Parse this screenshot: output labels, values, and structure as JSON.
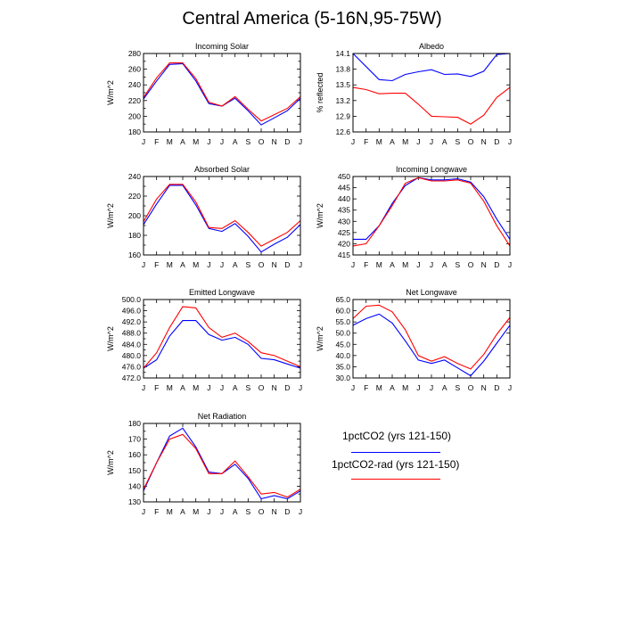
{
  "title": "Central America (5-16N,95-75W)",
  "colors": {
    "series1": "#0000ff",
    "series2": "#ff0000"
  },
  "legend": [
    {
      "label": "1pctCO2 (yrs 121-150)",
      "color": "#0000ff"
    },
    {
      "label": "1pctCO2-rad (yrs 121-150)",
      "color": "#ff0000"
    }
  ],
  "chart_data": [
    {
      "type": "line",
      "title": "Incoming Solar",
      "ylabel": "W/m^2",
      "categories": [
        "J",
        "F",
        "M",
        "A",
        "M",
        "J",
        "J",
        "A",
        "S",
        "O",
        "N",
        "D",
        "J"
      ],
      "ylim": [
        180,
        280
      ],
      "yticks": [
        180,
        190,
        200,
        210,
        220,
        230,
        240,
        250,
        260,
        270,
        280
      ],
      "ytick_labels": [
        "180",
        "",
        "200",
        "",
        "220",
        "",
        "240",
        "",
        "260",
        "",
        "280"
      ],
      "series": [
        {
          "values": [
            222,
            245,
            266,
            267,
            245,
            216,
            213,
            223,
            207,
            189,
            198,
            207,
            223
          ]
        },
        {
          "values": [
            224,
            249,
            268,
            268,
            248,
            218,
            213,
            225,
            209,
            194,
            202,
            210,
            225
          ]
        }
      ]
    },
    {
      "type": "line",
      "title": "Albedo",
      "ylabel": "% reflected",
      "categories": [
        "J",
        "F",
        "M",
        "A",
        "M",
        "J",
        "J",
        "A",
        "S",
        "O",
        "N",
        "D",
        "J"
      ],
      "ylim": [
        12.6,
        14.1
      ],
      "yticks": [
        12.6,
        12.9,
        13.2,
        13.5,
        13.8,
        14.1
      ],
      "ytick_labels": [
        "12.6",
        "12.9",
        "13.2",
        "13.5",
        "13.8",
        "14.1"
      ],
      "series": [
        {
          "values": [
            14.1,
            13.85,
            13.6,
            13.58,
            13.7,
            13.75,
            13.79,
            13.7,
            13.71,
            13.66,
            13.76,
            14.08,
            14.1
          ]
        },
        {
          "values": [
            13.45,
            13.41,
            13.33,
            13.34,
            13.34,
            13.13,
            12.9,
            12.89,
            12.88,
            12.75,
            12.92,
            13.26,
            13.45
          ]
        }
      ]
    },
    {
      "type": "line",
      "title": "Absorbed Solar",
      "ylabel": "W/m^2",
      "categories": [
        "J",
        "F",
        "M",
        "A",
        "M",
        "J",
        "J",
        "A",
        "S",
        "O",
        "N",
        "D",
        "J"
      ],
      "ylim": [
        160,
        240
      ],
      "yticks": [
        160,
        170,
        180,
        190,
        200,
        210,
        220,
        230,
        240
      ],
      "ytick_labels": [
        "160",
        "",
        "180",
        "",
        "200",
        "",
        "220",
        "",
        "240"
      ],
      "series": [
        {
          "values": [
            191,
            212,
            231,
            231,
            211,
            187,
            184,
            192,
            179,
            163,
            171,
            178,
            191
          ]
        },
        {
          "values": [
            194,
            217,
            232,
            232,
            214,
            188,
            187,
            195,
            183,
            169,
            176,
            183,
            195
          ]
        }
      ]
    },
    {
      "type": "line",
      "title": "Incoming Longwave",
      "ylabel": "W/m^2",
      "categories": [
        "J",
        "F",
        "M",
        "A",
        "M",
        "J",
        "J",
        "A",
        "S",
        "O",
        "N",
        "D",
        "J"
      ],
      "ylim": [
        415,
        450
      ],
      "yticks": [
        415,
        420,
        425,
        430,
        435,
        440,
        445,
        450
      ],
      "ytick_labels": [
        "415",
        "420",
        "425",
        "430",
        "435",
        "440",
        "445",
        "450"
      ],
      "series": [
        {
          "values": [
            422,
            422,
            428,
            438,
            446,
            449.5,
            448.5,
            448.5,
            449,
            447.5,
            441,
            431,
            422
          ]
        },
        {
          "values": [
            419,
            420,
            428,
            437,
            447,
            449.5,
            448,
            448,
            448.5,
            447,
            439,
            428,
            419
          ]
        }
      ]
    },
    {
      "type": "line",
      "title": "Emitted Longwave",
      "ylabel": "W/m^2",
      "categories": [
        "J",
        "F",
        "M",
        "A",
        "M",
        "J",
        "J",
        "A",
        "S",
        "O",
        "N",
        "D",
        "J"
      ],
      "ylim": [
        472,
        500
      ],
      "yticks": [
        472,
        474,
        476,
        478,
        480,
        482,
        484,
        486,
        488,
        490,
        492,
        494,
        496,
        498,
        500
      ],
      "ytick_labels": [
        "472.0",
        "",
        "476.0",
        "",
        "480.0",
        "",
        "484.0",
        "",
        "488.0",
        "",
        "492.0",
        "",
        "496.0",
        "",
        "500.0"
      ],
      "series": [
        {
          "values": [
            475.5,
            478.5,
            487,
            492.5,
            492.5,
            487.5,
            485.5,
            486.5,
            484,
            479,
            478.5,
            477,
            475.5
          ]
        },
        {
          "values": [
            475.5,
            481,
            490,
            497.5,
            497,
            490,
            486.5,
            488,
            485,
            481,
            480,
            478,
            476
          ]
        }
      ]
    },
    {
      "type": "line",
      "title": "Net Longwave",
      "ylabel": "W/m^2",
      "categories": [
        "J",
        "F",
        "M",
        "A",
        "M",
        "J",
        "J",
        "A",
        "S",
        "O",
        "N",
        "D",
        "J"
      ],
      "ylim": [
        30,
        65
      ],
      "yticks": [
        30,
        35,
        40,
        45,
        50,
        55,
        60,
        65
      ],
      "ytick_labels": [
        "30.0",
        "35.0",
        "40.0",
        "45.0",
        "50.0",
        "55.0",
        "60.0",
        "65.0"
      ],
      "series": [
        {
          "values": [
            53.5,
            56.5,
            58.5,
            54.5,
            46.5,
            38,
            36.5,
            38,
            34.5,
            31,
            37.5,
            45.5,
            53.5
          ]
        },
        {
          "values": [
            56.5,
            62,
            62.5,
            59.5,
            51.5,
            40,
            37.5,
            39.5,
            36.5,
            34,
            40.5,
            49.5,
            57
          ]
        }
      ]
    },
    {
      "type": "line",
      "title": "Net Radiation",
      "ylabel": "W/m^2",
      "categories": [
        "J",
        "F",
        "M",
        "A",
        "M",
        "J",
        "J",
        "A",
        "S",
        "O",
        "N",
        "D",
        "J"
      ],
      "ylim": [
        130,
        180
      ],
      "yticks": [
        130,
        135,
        140,
        145,
        150,
        155,
        160,
        165,
        170,
        175,
        180
      ],
      "ytick_labels": [
        "130",
        "",
        "140",
        "",
        "150",
        "",
        "160",
        "",
        "170",
        "",
        "180"
      ],
      "series": [
        {
          "values": [
            137,
            155,
            172,
            177,
            165,
            149,
            148,
            154,
            145,
            132,
            134,
            132,
            137
          ]
        },
        {
          "values": [
            138,
            155,
            170,
            173,
            164,
            148,
            148,
            156,
            146,
            135,
            136,
            133,
            138
          ]
        }
      ]
    }
  ]
}
